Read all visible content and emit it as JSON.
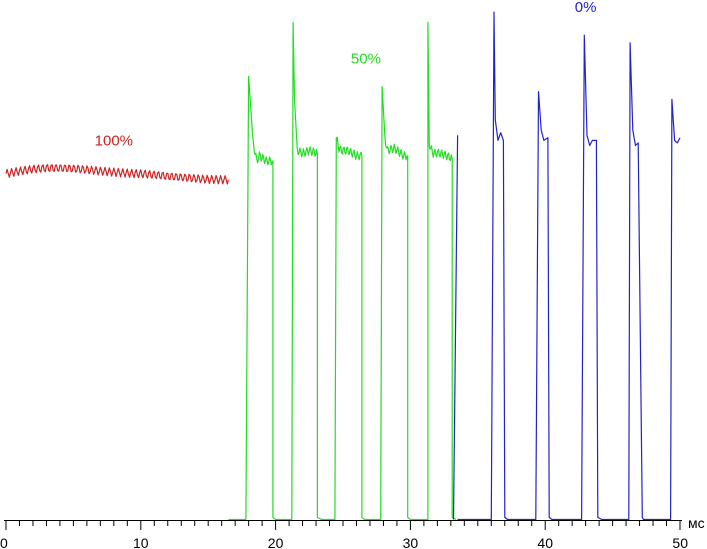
{
  "chart_data": {
    "type": "line",
    "title": "",
    "xlabel": "",
    "ylabel": "",
    "x_unit": "мс",
    "xlim": [
      0,
      50
    ],
    "ylim": [
      0,
      100
    ],
    "x_ticks": [
      "0",
      "10",
      "20",
      "30",
      "40",
      "50"
    ],
    "x_minor_step": 1,
    "grid": false,
    "series": [
      {
        "name": "100%",
        "color": "#cc2222",
        "label_at": [
          8,
          73
        ],
        "segments": [
          {
            "x": [
              0,
              1,
              2,
              3,
              4,
              5,
              6,
              7,
              8,
              9,
              10,
              11,
              12,
              13,
              14,
              15,
              16.5
            ],
            "y": [
              67.5,
              68.0,
              68.4,
              68.6,
              68.6,
              68.5,
              68.3,
              68.0,
              67.8,
              67.6,
              67.5,
              67.3,
              67.0,
              66.8,
              66.6,
              66.4,
              66.3
            ],
            "ripple": {
              "amplitude": 0.8,
              "period": 0.33
            }
          }
        ]
      },
      {
        "name": "50%",
        "color": "#22dd22",
        "label_at": [
          26.7,
          89
        ],
        "segments": [
          {
            "x": [
              16.5,
              17.8
            ],
            "y": [
              0.1,
              0.1
            ]
          },
          {
            "x": [
              17.8,
              18.0,
              18.3,
              18.6,
              18.8,
              19.3,
              19.8,
              19.8,
              20.0,
              21.2,
              21.3,
              21.4,
              21.6,
              22.0,
              22.5,
              23.1,
              23.1,
              23.4,
              24.4,
              24.5,
              24.7,
              24.9,
              25.4,
              26.0,
              26.4,
              26.4,
              26.6,
              27.8,
              27.9,
              28.1,
              28.3,
              28.8,
              29.5,
              29.8,
              29.8,
              30.0,
              31.3,
              31.3,
              31.4,
              31.5,
              31.7,
              32.2,
              32.7,
              33.1,
              33.1,
              33.4
            ],
            "y": [
              0.1,
              86.5,
              74.0,
              70.0,
              71.0,
              70.0,
              70.0,
              0.5,
              0.1,
              0.1,
              97.0,
              82.0,
              72.0,
              71.5,
              72.0,
              71.5,
              0.5,
              0.1,
              0.1,
              74.5,
              72.5,
              72.0,
              72.0,
              71.0,
              71.0,
              0.5,
              0.1,
              0.1,
              84.5,
              74.5,
              72.0,
              72.5,
              71.0,
              71.0,
              0.5,
              0.1,
              0.1,
              97.0,
              73.5,
              72.5,
              71.5,
              71.5,
              71.0,
              70.5,
              0.5,
              0.1
            ],
            "ripple": {
              "amplitude": 0.8,
              "period": 0.25
            }
          }
        ]
      },
      {
        "name": "0%",
        "color": "#2222cc",
        "label_at": [
          43,
          99
        ],
        "segments": [
          {
            "x": [
              33.2,
              33.5
            ],
            "y": [
              0.1,
              75.0
            ]
          },
          {
            "x": [
              33.5,
              33.8,
              36.0,
              36.2,
              36.3,
              36.5,
              36.7,
              36.9,
              37.0,
              37.2,
              37.4,
              39.3,
              39.5,
              39.7,
              39.9,
              40.2,
              40.3,
              40.5,
              42.7,
              42.9,
              43.1,
              43.3,
              43.5,
              43.8,
              43.9,
              44.2,
              46.2,
              46.3,
              46.5,
              46.7,
              46.9,
              47.2,
              47.3,
              49.3,
              49.4,
              49.6,
              49.8,
              50.0
            ],
            "y": [
              0.1,
              0.1,
              0.1,
              99.0,
              78.0,
              74.0,
              75.5,
              74.0,
              0.5,
              0.1,
              0.1,
              0.1,
              83.5,
              76.0,
              74.0,
              74.5,
              0.5,
              0.1,
              0.1,
              94.5,
              75.0,
              73.0,
              74.0,
              74.0,
              0.5,
              0.1,
              0.1,
              93.0,
              76.0,
              73.0,
              73.5,
              0.5,
              0.1,
              0.1,
              82.0,
              74.0,
              73.5,
              74.5
            ]
          }
        ]
      }
    ]
  }
}
